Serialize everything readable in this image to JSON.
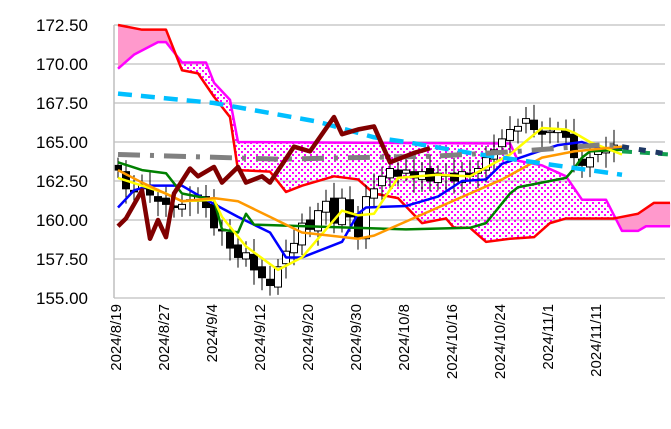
{
  "chart_data": {
    "type": "candlestick-ichimoku",
    "title": "",
    "ylim": [
      155.0,
      172.5
    ],
    "yticks": [
      "155.00",
      "157.50",
      "160.00",
      "162.50",
      "165.00",
      "167.50",
      "170.00",
      "172.50"
    ],
    "ytick_values": [
      155,
      157.5,
      160,
      162.5,
      165,
      167.5,
      170,
      172.5
    ],
    "xticks": [
      {
        "index": 0,
        "label": "2024/8/19"
      },
      {
        "index": 6,
        "label": "2024/8/27"
      },
      {
        "index": 12,
        "label": "2024/9/4"
      },
      {
        "index": 18,
        "label": "2024/9/12"
      },
      {
        "index": 24,
        "label": "2024/9/20"
      },
      {
        "index": 30,
        "label": "2024/9/30"
      },
      {
        "index": 36,
        "label": "2024/10/8"
      },
      {
        "index": 42,
        "label": "2024/10/16"
      },
      {
        "index": 48,
        "label": "2024/10/24"
      },
      {
        "index": 54,
        "label": "2024/11/1"
      },
      {
        "index": 60,
        "label": "2024/11/11"
      }
    ],
    "grid": true,
    "candles_close": [
      163.2,
      162.0,
      161.8,
      162.3,
      161.6,
      161.2,
      161.0,
      160.8,
      161.0,
      161.3,
      161.6,
      160.8,
      159.5,
      159.3,
      158.2,
      157.6,
      157.9,
      156.8,
      156.3,
      155.8,
      157.0,
      158.0,
      158.5,
      159.8,
      159.4,
      160.6,
      161.2,
      159.8,
      161.4,
      160.2,
      158.9,
      161.5,
      162.0,
      162.8,
      163.3,
      162.8,
      163.2,
      162.7,
      163.1,
      162.5,
      163.0,
      162.8,
      162.5,
      163.1,
      162.8,
      163.3,
      164.0,
      164.5,
      165.2,
      165.8,
      166.0,
      166.5,
      165.8,
      165.5,
      165.7,
      165.8,
      165.3,
      164.0,
      163.5,
      164.0,
      164.4,
      164.6,
      164.8
    ],
    "series": [
      {
        "name": "tenkan",
        "color": "#0000ff",
        "width": 2.5,
        "dash": "",
        "points": [
          [
            0,
            160.8
          ],
          [
            2,
            161.9
          ],
          [
            4,
            162.2
          ],
          [
            8,
            162.2
          ],
          [
            11,
            161.3
          ],
          [
            15,
            160.2
          ],
          [
            19,
            159.2
          ],
          [
            21,
            157.6
          ],
          [
            23,
            157.6
          ],
          [
            28,
            158.6
          ],
          [
            30,
            160.4
          ],
          [
            31,
            160.8
          ],
          [
            36,
            160.9
          ],
          [
            40,
            161.5
          ],
          [
            43,
            162.5
          ],
          [
            46,
            162.6
          ],
          [
            48,
            163.6
          ],
          [
            52,
            164.3
          ],
          [
            55,
            164.8
          ],
          [
            58,
            165.0
          ],
          [
            60,
            164.6
          ],
          [
            63,
            164.6
          ]
        ]
      },
      {
        "name": "kijun",
        "color": "#008000",
        "width": 2.5,
        "dash": "",
        "points": [
          [
            0,
            163.7
          ],
          [
            3,
            163.2
          ],
          [
            6,
            163.0
          ],
          [
            8,
            161.7
          ],
          [
            12,
            161.3
          ],
          [
            13,
            159.4
          ],
          [
            15,
            159.2
          ],
          [
            16,
            160.4
          ],
          [
            17,
            159.7
          ],
          [
            36,
            159.4
          ],
          [
            44,
            159.5
          ],
          [
            46,
            159.8
          ],
          [
            49,
            161.7
          ],
          [
            50,
            162.1
          ],
          [
            56,
            162.7
          ],
          [
            57,
            163.3
          ],
          [
            58,
            164.0
          ],
          [
            59,
            164.4
          ],
          [
            63,
            164.5
          ]
        ]
      },
      {
        "name": "kijun-extension",
        "color": "#13a050",
        "width": 4,
        "dash": "10,8",
        "points": [
          [
            63,
            164.4
          ],
          [
            69,
            164.2
          ]
        ]
      },
      {
        "name": "moving-average-short",
        "color": "#ffff00",
        "width": 2.5,
        "dash": "",
        "points": [
          [
            0,
            162.7
          ],
          [
            6,
            161.7
          ],
          [
            8,
            161.2
          ],
          [
            12,
            161.3
          ],
          [
            13,
            160.2
          ],
          [
            16,
            158.3
          ],
          [
            20,
            156.8
          ],
          [
            23,
            157.6
          ],
          [
            28,
            160.6
          ],
          [
            30,
            160.3
          ],
          [
            32,
            160.4
          ],
          [
            35,
            162.7
          ],
          [
            40,
            162.9
          ],
          [
            44,
            162.8
          ],
          [
            49,
            164.2
          ],
          [
            53,
            165.9
          ],
          [
            56,
            165.8
          ],
          [
            57,
            165.6
          ],
          [
            59,
            165.0
          ],
          [
            63,
            164.2
          ]
        ]
      },
      {
        "name": "moving-average-mid",
        "color": "#ff9900",
        "width": 2.5,
        "dash": "",
        "points": [
          [
            0,
            163.2
          ],
          [
            3,
            162.4
          ],
          [
            8,
            161.2
          ],
          [
            12,
            161.4
          ],
          [
            15,
            161.2
          ],
          [
            19,
            160.2
          ],
          [
            23,
            159.2
          ],
          [
            30,
            158.8
          ],
          [
            32,
            159.0
          ],
          [
            40,
            160.8
          ],
          [
            48,
            162.6
          ],
          [
            53,
            164.0
          ],
          [
            57,
            164.4
          ],
          [
            63,
            164.7
          ]
        ]
      },
      {
        "name": "moving-average-long",
        "color": "#00bfff",
        "width": 4.5,
        "dash": "14,9",
        "points": [
          [
            0,
            168.1
          ],
          [
            12,
            167.5
          ],
          [
            25,
            166.3
          ],
          [
            32,
            165.3
          ],
          [
            36,
            165.0
          ],
          [
            44,
            164.3
          ],
          [
            52,
            163.7
          ],
          [
            63,
            162.9
          ]
        ]
      },
      {
        "name": "moving-average-200",
        "color": "#808080",
        "width": 5,
        "dash": "22,10,4,10",
        "points": [
          [
            0,
            164.2
          ],
          [
            20,
            163.9
          ],
          [
            40,
            164.1
          ],
          [
            50,
            164.4
          ],
          [
            60,
            164.8
          ],
          [
            63,
            164.8
          ]
        ]
      },
      {
        "name": "ma200-extension",
        "color": "#1f3864",
        "width": 5,
        "dash": "7,10",
        "points": [
          [
            63,
            164.7
          ],
          [
            69,
            164.2
          ]
        ]
      },
      {
        "name": "chikou",
        "color": "#800000",
        "width": 4.5,
        "dash": "",
        "points": [
          [
            0,
            159.6
          ],
          [
            1,
            160.1
          ],
          [
            3,
            161.9
          ],
          [
            4,
            158.8
          ],
          [
            5,
            160.0
          ],
          [
            6,
            158.9
          ],
          [
            7,
            161.7
          ],
          [
            9,
            163.3
          ],
          [
            10,
            162.8
          ],
          [
            12,
            163.4
          ],
          [
            13,
            162.4
          ],
          [
            15,
            163.4
          ],
          [
            16,
            162.4
          ],
          [
            18,
            162.8
          ],
          [
            19,
            162.4
          ],
          [
            22,
            164.7
          ],
          [
            24,
            164.4
          ],
          [
            27,
            166.6
          ],
          [
            28,
            165.5
          ],
          [
            30,
            165.8
          ],
          [
            32,
            166.0
          ],
          [
            34,
            163.7
          ],
          [
            35,
            163.9
          ],
          [
            37,
            164.3
          ],
          [
            39,
            164.6
          ]
        ]
      }
    ],
    "cloud": {
      "senkou_a": {
        "color": "#ff00ff",
        "points": [
          [
            0,
            169.7
          ],
          [
            2,
            170.6
          ],
          [
            5,
            171.4
          ],
          [
            6,
            171.4
          ],
          [
            8,
            170.1
          ],
          [
            11,
            170.1
          ],
          [
            12,
            168.8
          ],
          [
            14,
            167.7
          ],
          [
            15,
            165.0
          ],
          [
            49,
            164.9
          ],
          [
            50,
            163.8
          ],
          [
            53,
            163.5
          ],
          [
            56,
            162.8
          ],
          [
            58,
            161.3
          ],
          [
            61,
            161.3
          ],
          [
            63,
            159.3
          ],
          [
            65,
            159.3
          ],
          [
            66,
            159.6
          ],
          [
            69,
            159.6
          ]
        ]
      },
      "senkou_b": {
        "color": "#ff0000",
        "points": [
          [
            0,
            172.5
          ],
          [
            3,
            172.2
          ],
          [
            6,
            172.2
          ],
          [
            8,
            169.6
          ],
          [
            10,
            169.4
          ],
          [
            12,
            167.9
          ],
          [
            14,
            166.6
          ],
          [
            15,
            163.2
          ],
          [
            19,
            163.1
          ],
          [
            21,
            161.8
          ],
          [
            23,
            162.2
          ],
          [
            27,
            162.8
          ],
          [
            30,
            162.6
          ],
          [
            32,
            161.7
          ],
          [
            35,
            161.4
          ],
          [
            38,
            159.8
          ],
          [
            41,
            160.1
          ],
          [
            42,
            159.5
          ],
          [
            44,
            159.5
          ],
          [
            46,
            158.6
          ],
          [
            49,
            158.8
          ],
          [
            52,
            158.9
          ],
          [
            54,
            159.8
          ],
          [
            56,
            160.1
          ],
          [
            62,
            160.1
          ],
          [
            65,
            160.4
          ],
          [
            67,
            161.1
          ],
          [
            69,
            161.1
          ]
        ]
      },
      "fill_bearish": "#ff99cc",
      "fill_bullish_dots": "#ff00ff"
    }
  }
}
